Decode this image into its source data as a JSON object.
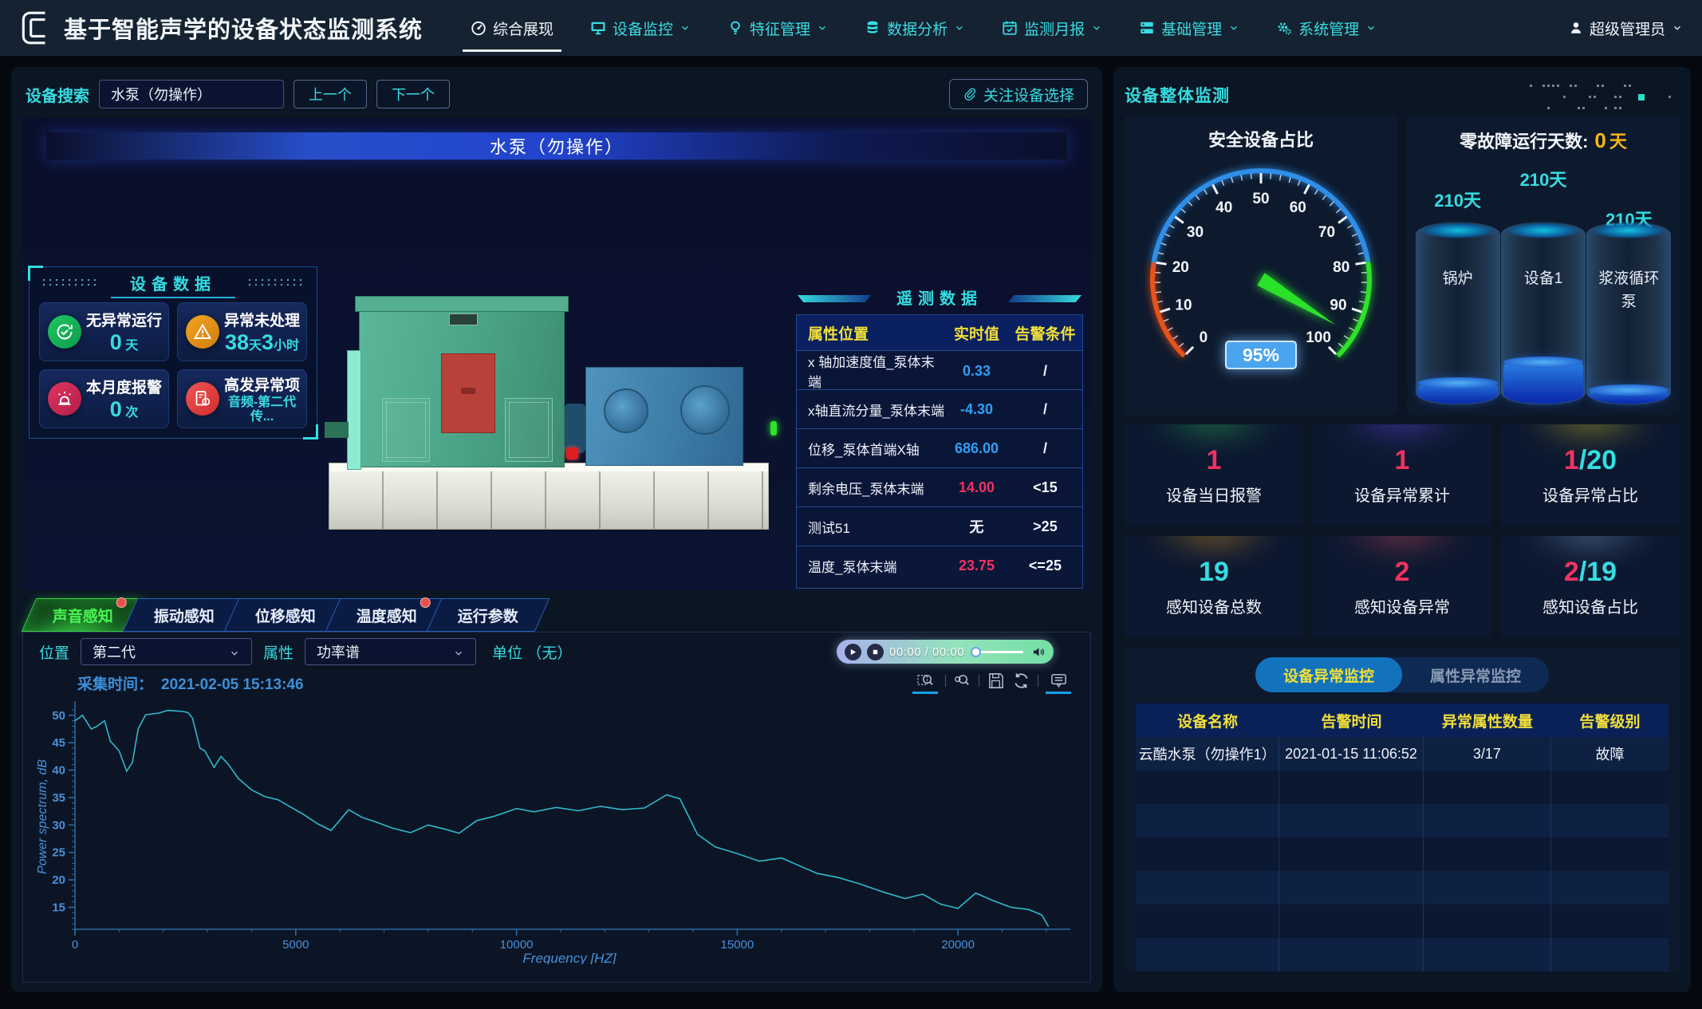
{
  "nav": {
    "title": "基于智能声学的设备状态监测系统",
    "items": [
      {
        "label": "综合展现",
        "icon": "dashboard-icon",
        "active": true,
        "dropdown": false
      },
      {
        "label": "设备监控",
        "icon": "monitor-icon",
        "active": false,
        "dropdown": true
      },
      {
        "label": "特征管理",
        "icon": "bulb-icon",
        "active": false,
        "dropdown": true
      },
      {
        "label": "数据分析",
        "icon": "database-icon",
        "active": false,
        "dropdown": true
      },
      {
        "label": "监测月报",
        "icon": "calendar-icon",
        "active": false,
        "dropdown": true
      },
      {
        "label": "基础管理",
        "icon": "server-icon",
        "active": false,
        "dropdown": true
      },
      {
        "label": "系统管理",
        "icon": "gear-icon",
        "active": false,
        "dropdown": true
      }
    ],
    "user_label": "超级管理员"
  },
  "device_panel": {
    "search": {
      "label": "设备搜索",
      "value": "水泵（勿操作）",
      "prev": "上一个",
      "next": "下一个",
      "follow": "关注设备选择"
    },
    "viewport_title": "水泵（勿操作）",
    "device_data": {
      "title": "设备数据",
      "cards": [
        {
          "title": "无异常运行",
          "icon": "sync-check-icon",
          "color1": "#1ec85e",
          "color2": "#0e9a50",
          "value_parts": [
            {
              "t": "0",
              "big": true
            },
            {
              "t": " 天",
              "big": false
            }
          ]
        },
        {
          "title": "异常未处理",
          "icon": "warning-icon",
          "color1": "#f2a51c",
          "color2": "#cf7d12",
          "value_parts": [
            {
              "t": "38",
              "big": true
            },
            {
              "t": "天",
              "big": false
            },
            {
              "t": "3",
              "big": true
            },
            {
              "t": "小时",
              "big": false
            }
          ]
        },
        {
          "title": "本月度报警",
          "icon": "siren-icon",
          "color1": "#e03560",
          "color2": "#b01f48",
          "value_parts": [
            {
              "t": "0",
              "big": true
            },
            {
              "t": " 次",
              "big": false
            }
          ]
        },
        {
          "title": "高发异常项",
          "icon": "file-alert-icon",
          "color1": "#f25454",
          "color2": "#cf2d2d",
          "value_parts": [
            {
              "t": "音频-第二代传...",
              "big": false
            }
          ]
        }
      ]
    },
    "telemetry": {
      "title": "遥测数据",
      "headers": [
        "属性位置",
        "实时值",
        "告警条件"
      ],
      "rows": [
        {
          "attr": "x 轴加速度值_泵体末端",
          "value": "0.33",
          "value_color": "#2da0f2",
          "cond": "/"
        },
        {
          "attr": "x轴直流分量_泵体末端",
          "value": "-4.30",
          "value_color": "#2da0f2",
          "cond": "/"
        },
        {
          "attr": "位移_泵体首端X轴",
          "value": "686.00",
          "value_color": "#2da0f2",
          "cond": "/"
        },
        {
          "attr": "剩余电压_泵体末端",
          "value": "14.00",
          "value_color": "#f03260",
          "cond": "<15"
        },
        {
          "attr": "测试51",
          "value": "无",
          "value_color": "#eef2fa",
          "cond": ">25"
        },
        {
          "attr": "温度_泵体末端",
          "value": "23.75",
          "value_color": "#f03260",
          "cond": "<=25"
        }
      ]
    },
    "sense_tabs": [
      {
        "label": "声音感知",
        "active": true,
        "badge": true
      },
      {
        "label": "振动感知",
        "active": false,
        "badge": false
      },
      {
        "label": "位移感知",
        "active": false,
        "badge": false
      },
      {
        "label": "温度感知",
        "active": false,
        "badge": true
      },
      {
        "label": "运行参数",
        "active": false,
        "badge": false
      }
    ],
    "controls": {
      "pos_label": "位置",
      "pos_value": "第二代",
      "attr_label": "属性",
      "attr_value": "功率谱",
      "unit_label": "单位",
      "unit_value": "（无）",
      "player_time": "00:00 / 00:00"
    },
    "capture_time_label": "采集时间：",
    "capture_time": "2021-02-05 15:13:46"
  },
  "chart_data": {
    "type": "line",
    "title": "",
    "xlabel": "Frequency [HZ]",
    "ylabel": "Power spectrum, dB",
    "xlim": [
      0,
      22400
    ],
    "ylim": [
      11,
      52
    ],
    "xticks": [
      0,
      5000,
      10000,
      15000,
      20000
    ],
    "yticks": [
      15,
      20,
      25,
      30,
      35,
      40,
      45,
      50
    ],
    "grid": false,
    "legend": false,
    "line_color": "#2fb9c9",
    "x": [
      0,
      170,
      370,
      500,
      670,
      800,
      1000,
      1170,
      1300,
      1430,
      1600,
      1900,
      2100,
      2440,
      2560,
      2660,
      2830,
      2940,
      3150,
      3310,
      3480,
      3700,
      4000,
      4300,
      4600,
      4900,
      5200,
      5500,
      5800,
      6200,
      6500,
      6800,
      7200,
      7600,
      8000,
      8400,
      8700,
      9100,
      9500,
      10000,
      10400,
      10900,
      11400,
      11900,
      12400,
      12900,
      13400,
      13700,
      14100,
      14500,
      15000,
      15500,
      16000,
      16400,
      16800,
      17300,
      17800,
      18300,
      18800,
      19200,
      19600,
      20000,
      20400,
      20800,
      21200,
      21600,
      21900,
      22050
    ],
    "y": [
      49.0,
      50.0,
      47.5,
      48.0,
      49.0,
      45.3,
      43.5,
      39.8,
      41.4,
      47.5,
      50.1,
      50.4,
      50.9,
      50.7,
      50.5,
      49.5,
      44.0,
      43.5,
      40.5,
      42.5,
      41.0,
      38.5,
      36.4,
      35.2,
      34.6,
      33.2,
      31.8,
      30.2,
      29.0,
      32.8,
      31.4,
      30.6,
      29.4,
      28.6,
      30.0,
      29.2,
      28.5,
      30.8,
      31.6,
      33.0,
      32.4,
      33.2,
      32.6,
      33.4,
      32.8,
      33.1,
      35.5,
      34.8,
      28.3,
      26.0,
      24.8,
      23.4,
      24.0,
      22.6,
      21.2,
      20.4,
      19.2,
      17.8,
      16.6,
      17.4,
      15.6,
      14.8,
      17.6,
      16.2,
      15.0,
      14.6,
      13.6,
      11.5
    ]
  },
  "overview_panel": {
    "title": "设备整体监测",
    "gauge": {
      "title": "安全设备占比",
      "value": 95,
      "display": "95%",
      "min": 0,
      "max": 100,
      "ranges": [
        {
          "from": 0,
          "to": 20,
          "color": "#e8511c"
        },
        {
          "from": 20,
          "to": 80,
          "color": "#2e8ee8"
        },
        {
          "from": 80,
          "to": 100,
          "color": "#2de22a"
        }
      ],
      "needle_color": "#2be22b",
      "badge_color": "#4ba4ee"
    },
    "days": {
      "title_prefix": "零故障运行天数:",
      "value": "0",
      "unit": "天",
      "cylinders": [
        {
          "name": "锅炉",
          "days": "210天",
          "fill": 0.14,
          "label_offset": 34
        },
        {
          "name": "设备1",
          "days": "210天",
          "fill": 0.25,
          "label_offset": 8
        },
        {
          "name": "浆液循环泵",
          "days": "210天",
          "fill": 0.1,
          "label_offset": 58
        }
      ]
    },
    "stats": [
      {
        "v1": "1",
        "v2": "",
        "label": "设备当日报警",
        "glow": "#2fae5a"
      },
      {
        "v1": "1",
        "v2": "",
        "label": "设备异常累计",
        "glow": "#5848d8"
      },
      {
        "v1": "1",
        "v2": "/20",
        "label": "设备异常占比",
        "glow": "#c8b822"
      },
      {
        "v1": "",
        "v2": "19",
        "label": "感知设备总数",
        "glow": "#cf9022"
      },
      {
        "v1": "2",
        "v2": "",
        "label": "感知设备异常",
        "glow": "#c44858"
      },
      {
        "v1": "2",
        "v2": "/19",
        "label": "感知设备占比",
        "glow": "#7a98c0"
      }
    ],
    "alarm_table": {
      "tabs": [
        {
          "label": "设备异常监控",
          "active": true
        },
        {
          "label": "属性异常监控",
          "active": false
        }
      ],
      "headers": [
        "设备名称",
        "告警时间",
        "异常属性数量",
        "告警级别"
      ],
      "rows": [
        [
          "云酷水泵（勿操作1）",
          "2021-01-15 11:06:52",
          "3/17",
          "故障"
        ]
      ],
      "empty_rows": 6
    }
  }
}
